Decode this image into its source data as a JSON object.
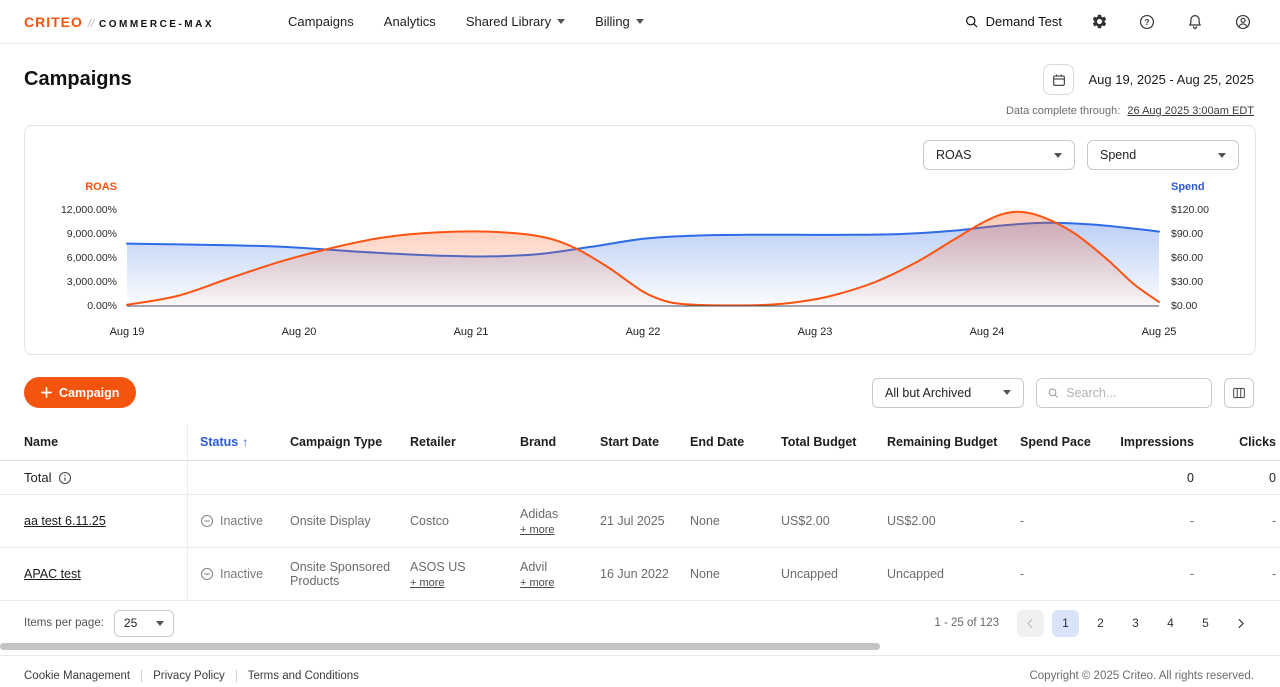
{
  "colors": {
    "accent": "#F4540D",
    "blue": "#2B5BD7",
    "inactive": "#8C8C8C"
  },
  "brand": {
    "logo_text": "CRITEO",
    "logo_separator": "//",
    "logo_suffix": "COMMERCE-MAX"
  },
  "nav": {
    "items": [
      "Campaigns",
      "Analytics",
      "Shared Library",
      "Billing"
    ],
    "account_label": "Demand Test"
  },
  "header": {
    "title": "Campaigns",
    "date_range": "Aug 19, 2025 - Aug 25, 2025",
    "data_complete_label": "Data complete through:",
    "data_complete_link": "26 Aug 2025 3:00am EDT"
  },
  "chart_controls": {
    "left_metric": "ROAS",
    "right_metric": "Spend"
  },
  "chart_data": {
    "type": "area",
    "x_ticks": [
      "Aug 19",
      "Aug 20",
      "Aug 21",
      "Aug 22",
      "Aug 23",
      "Aug 24",
      "Aug 25"
    ],
    "left_axis": {
      "label": "ROAS",
      "color": "#F4540D",
      "range": [
        0,
        12000
      ],
      "ticks": [
        "12,000.00%",
        "9,000.00%",
        "6,000.00%",
        "3,000.00%",
        "0.00%"
      ]
    },
    "right_axis": {
      "label": "Spend",
      "color": "#2B5BD7",
      "range": [
        0,
        120
      ],
      "ticks": [
        "$120.00",
        "$90.00",
        "$60.00",
        "$30.00",
        "$0.00"
      ]
    },
    "legend": "off",
    "grid": "off",
    "series": [
      {
        "name": "ROAS",
        "axis": "left",
        "color": "#FF5310",
        "points": [
          [
            0,
            150
          ],
          [
            0.3,
            1300
          ],
          [
            0.6,
            3500
          ],
          [
            0.9,
            5600
          ],
          [
            1.2,
            7300
          ],
          [
            1.5,
            8600
          ],
          [
            1.8,
            9200
          ],
          [
            2.1,
            9300
          ],
          [
            2.4,
            8700
          ],
          [
            2.6,
            7300
          ],
          [
            2.8,
            4800
          ],
          [
            3,
            1800
          ],
          [
            3.15,
            500
          ],
          [
            3.3,
            150
          ],
          [
            3.5,
            80
          ],
          [
            3.7,
            120
          ],
          [
            3.9,
            500
          ],
          [
            4.1,
            1300
          ],
          [
            4.35,
            3000
          ],
          [
            4.6,
            5600
          ],
          [
            4.8,
            8200
          ],
          [
            5,
            10700
          ],
          [
            5.15,
            11750
          ],
          [
            5.3,
            11300
          ],
          [
            5.5,
            9200
          ],
          [
            5.7,
            5800
          ],
          [
            5.85,
            2800
          ],
          [
            6,
            500
          ]
        ]
      },
      {
        "name": "Spend",
        "axis": "right",
        "color": "#2E6BE6",
        "points": [
          [
            0,
            78
          ],
          [
            0.3,
            77
          ],
          [
            0.6,
            76
          ],
          [
            0.9,
            74
          ],
          [
            1.2,
            70
          ],
          [
            1.5,
            66
          ],
          [
            1.8,
            63
          ],
          [
            2.1,
            62
          ],
          [
            2.4,
            65
          ],
          [
            2.7,
            74
          ],
          [
            3,
            84
          ],
          [
            3.3,
            88
          ],
          [
            3.6,
            89
          ],
          [
            3.9,
            89
          ],
          [
            4.2,
            89
          ],
          [
            4.5,
            90
          ],
          [
            4.8,
            94
          ],
          [
            5.1,
            101
          ],
          [
            5.35,
            104
          ],
          [
            5.6,
            102
          ],
          [
            5.8,
            98
          ],
          [
            6,
            93
          ]
        ]
      }
    ]
  },
  "toolbar": {
    "new_campaign_label": "Campaign",
    "filter_value": "All but Archived",
    "search_placeholder": "Search..."
  },
  "table": {
    "columns": [
      "Name",
      "Status",
      "Campaign Type",
      "Retailer",
      "Brand",
      "Start Date",
      "End Date",
      "Total Budget",
      "Remaining Budget",
      "Spend Pace",
      "Impressions",
      "Clicks"
    ],
    "sort_indicator": "↑",
    "total": {
      "label": "Total",
      "impressions": "0",
      "clicks": "0"
    },
    "rows": [
      {
        "name": "aa test 6.11.25",
        "status": "Inactive",
        "campaign_type": "Onsite Display",
        "retailer": "Costco",
        "retailer_more": "",
        "brand": "Adidas",
        "brand_more": "+ more",
        "start_date": "21 Jul 2025",
        "end_date": "None",
        "total_budget": "US$2.00",
        "remaining_budget": "US$2.00",
        "spend_pace": "-",
        "impressions": "-",
        "clicks": "-"
      },
      {
        "name": "APAC test",
        "status": "Inactive",
        "campaign_type": "Onsite Sponsored Products",
        "retailer": "ASOS US",
        "retailer_more": "+ more",
        "brand": "Advil",
        "brand_more": "+ more",
        "start_date": "16 Jun 2022",
        "end_date": "None",
        "total_budget": "Uncapped",
        "remaining_budget": "Uncapped",
        "spend_pace": "-",
        "impressions": "-",
        "clicks": "-"
      }
    ]
  },
  "pagination": {
    "items_per_page_label": "Items per page:",
    "items_per_page_value": "25",
    "range_label": "1 - 25 of 123",
    "pages": [
      "1",
      "2",
      "3",
      "4",
      "5"
    ],
    "current_page": "1"
  },
  "footer": {
    "links": [
      "Cookie Management",
      "Privacy Policy",
      "Terms and Conditions"
    ],
    "copyright": "Copyright © 2025 Criteo. All rights reserved."
  }
}
